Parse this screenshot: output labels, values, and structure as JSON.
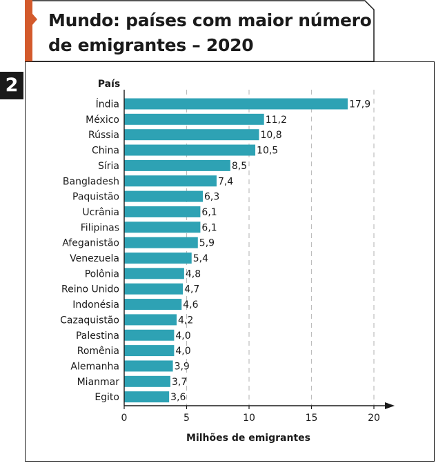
{
  "title": "Mundo: países com maior número de emigrantes – 2020",
  "figure_number": "2",
  "colors": {
    "bar": "#2ea2b4",
    "accent": "#d35a2c",
    "grid": "#bdbdbd",
    "ink": "#1a1a1a"
  },
  "chart_data": {
    "type": "bar",
    "orientation": "horizontal",
    "title": "Mundo: países com maior número de emigrantes – 2020",
    "ylabel": "País",
    "xlabel": "Milhões de emigrantes",
    "xlim": [
      0,
      20
    ],
    "xticks": [
      "0",
      "5",
      "10",
      "15",
      "20"
    ],
    "grid": true,
    "categories": [
      "Índia",
      "México",
      "Rússia",
      "China",
      "Síria",
      "Bangladesh",
      "Paquistão",
      "Ucrânia",
      "Filipinas",
      "Afeganistão",
      "Venezuela",
      "Polônia",
      "Reino Unido",
      "Indonésia",
      "Cazaquistão",
      "Palestina",
      "Romênia",
      "Alemanha",
      "Mianmar",
      "Egito"
    ],
    "values": [
      17.9,
      11.2,
      10.8,
      10.5,
      8.5,
      7.4,
      6.3,
      6.1,
      6.1,
      5.9,
      5.4,
      4.8,
      4.7,
      4.6,
      4.2,
      4.0,
      4.0,
      3.9,
      3.7,
      3.6
    ],
    "value_labels": [
      "17,9",
      "11,2",
      "10,8",
      "10,5",
      "8,5",
      "7,4",
      "6,3",
      "6,1",
      "6,1",
      "5,9",
      "5,4",
      "4,8",
      "4,7",
      "4,6",
      "4,2",
      "4,0",
      "4,0",
      "3,9",
      "3,7",
      "3,6"
    ]
  }
}
